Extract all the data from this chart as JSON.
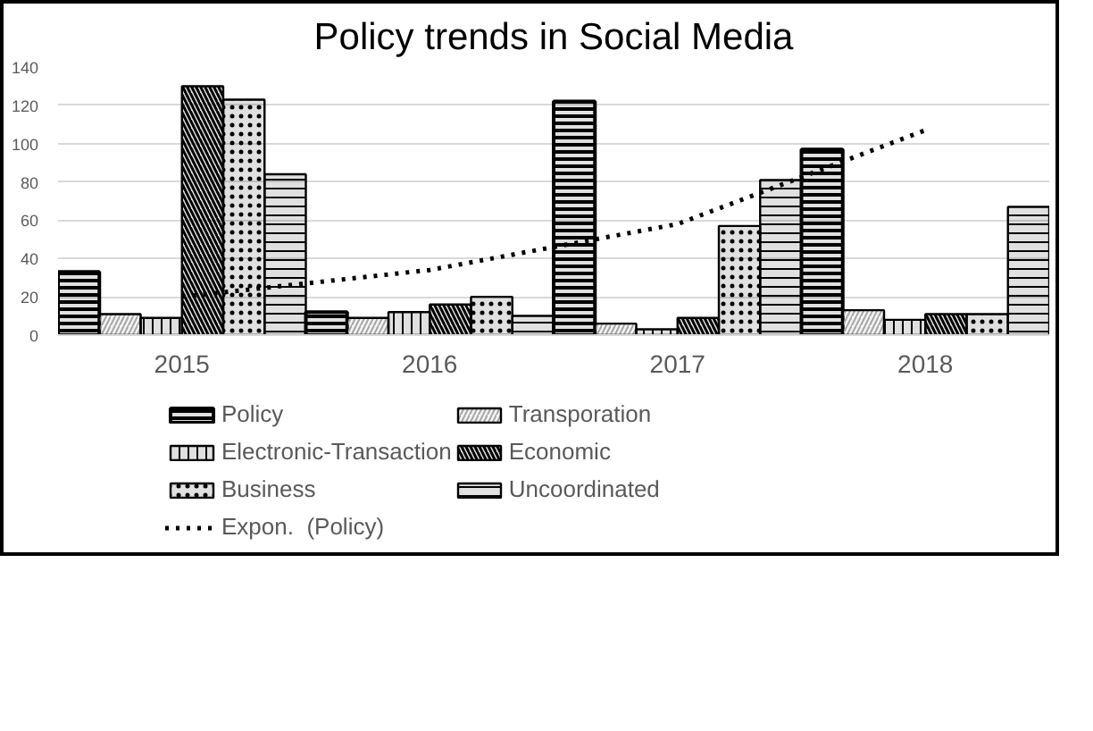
{
  "chart_data": {
    "type": "bar",
    "title": "Policy trends in Social Media",
    "categories": [
      "2015",
      "2016",
      "2017",
      "2018"
    ],
    "series": [
      {
        "name": "Policy",
        "color": "#000000",
        "values": [
          33,
          12,
          122,
          97
        ]
      },
      {
        "name": "Transporation",
        "color": "#a6a6a6",
        "values": [
          11,
          9,
          6,
          13
        ]
      },
      {
        "name": "Electronic-Transaction",
        "color": "#000000",
        "values": [
          9,
          12,
          3,
          8
        ]
      },
      {
        "name": "Economic",
        "color": "#000000",
        "values": [
          130,
          16,
          9,
          11
        ]
      },
      {
        "name": "Business",
        "color": "#000000",
        "values": [
          123,
          20,
          57,
          11
        ]
      },
      {
        "name": "Uncoordinated",
        "color": "#000000",
        "values": [
          84,
          10,
          81,
          67
        ]
      },
      {
        "name": "Expon.  (Policy)",
        "type": "line",
        "color": "#000000",
        "line_style": "dotted",
        "values": [
          20,
          34,
          58,
          107
        ]
      }
    ],
    "ylim": [
      0,
      140
    ],
    "yticks": [
      0,
      20,
      40,
      60,
      80,
      100,
      120,
      140
    ],
    "grid": "y",
    "legend": "bottom"
  }
}
